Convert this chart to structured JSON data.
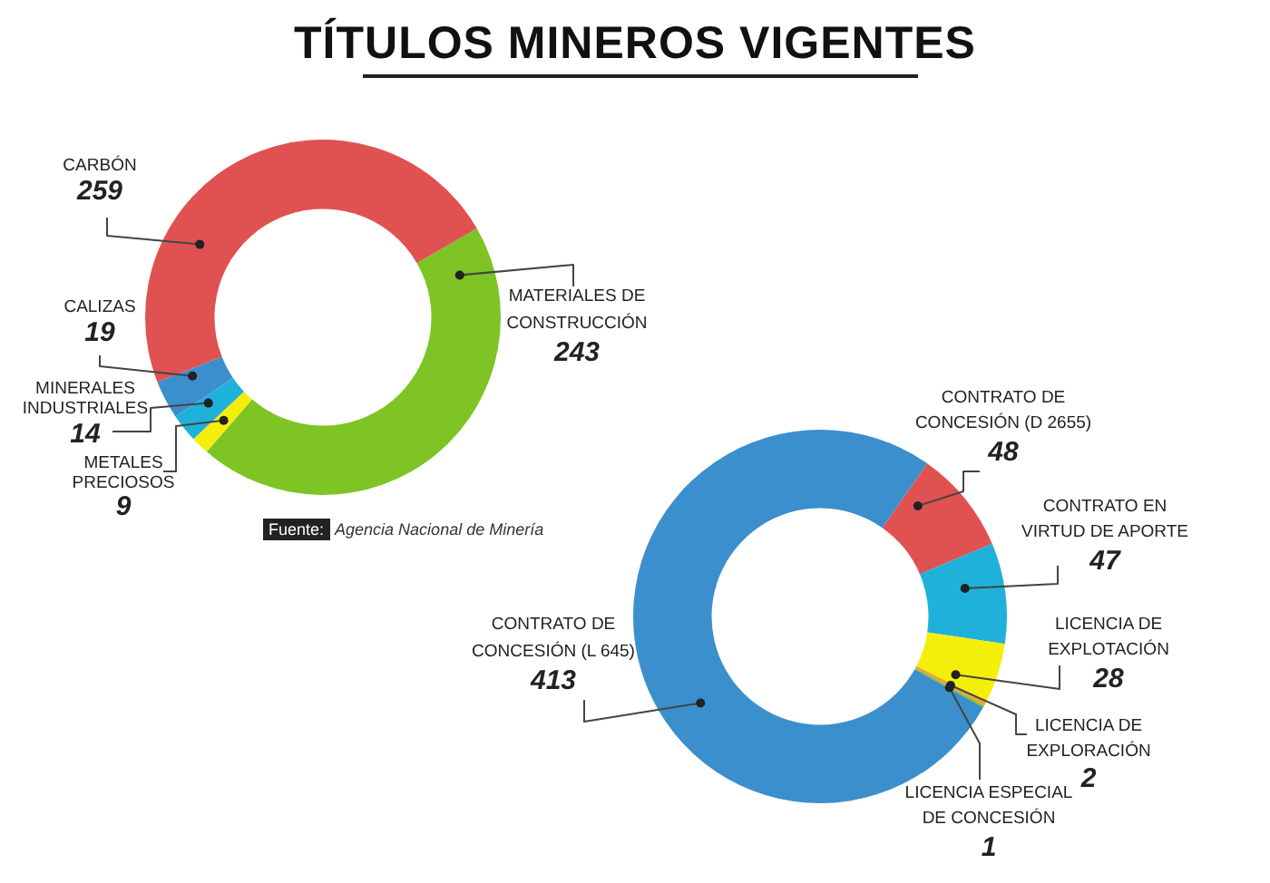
{
  "chart_data": [
    {
      "type": "donut",
      "title": "TÍTULOS MINEROS VIGENTES",
      "categories": [
        "MATERIALES DE CONSTRUCCIÓN",
        "METALES PRECIOSOS",
        "MINERALES INDUSTRIALES",
        "CALIZAS",
        "CARBÓN"
      ],
      "values": [
        243,
        9,
        14,
        19,
        259
      ],
      "colors": [
        "#7dc424",
        "#f4ef0a",
        "#1fb1d9",
        "#3b8fcd",
        "#e05252"
      ],
      "data_labels": true,
      "legend": false,
      "annotations": [
        "Fuente: Agencia Nacional de Minería"
      ]
    },
    {
      "type": "donut",
      "categories": [
        "CONTRATO DE CONCESIÓN (D 2655)",
        "CONTRATO EN VIRTUD DE APORTE",
        "LICENCIA DE EXPLOTACIÓN",
        "LICENCIA DE EXPLORACIÓN",
        "LICENCIA ESPECIAL DE CONCESIÓN",
        "CONTRATO DE CONCESIÓN (L 645)"
      ],
      "values": [
        48,
        47,
        28,
        2,
        1,
        413
      ],
      "colors": [
        "#e05252",
        "#1fb1d9",
        "#f4ef0a",
        "#f3a235",
        "#7dc424",
        "#3b8fcd"
      ],
      "data_labels": true,
      "legend": false
    }
  ]
}
